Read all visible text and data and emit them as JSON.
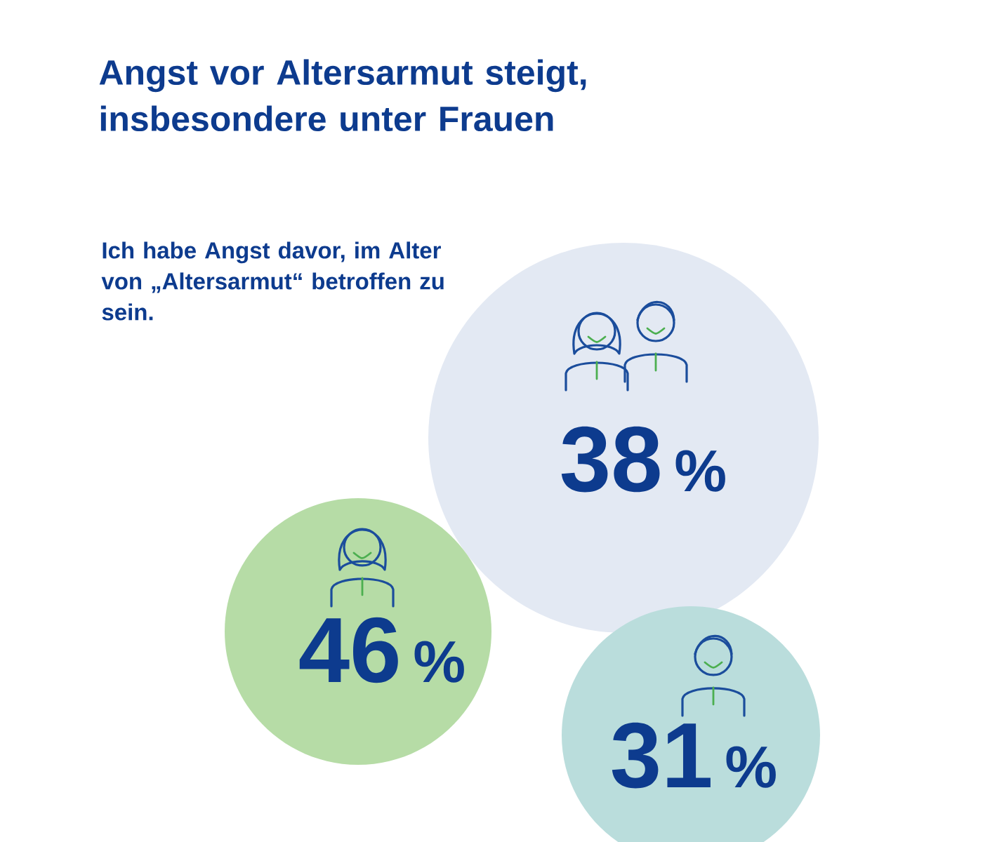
{
  "chart_data": {
    "type": "other",
    "title": "Angst vor Altersarmut steigt, insbesondere unter Frauen",
    "subtitle": "Ich habe Angst davor, im Alter von „Altersarmut“ betroffen zu sein.",
    "categories": [
      null,
      null,
      null
    ],
    "values": [
      38,
      46,
      31
    ],
    "data_labels": true,
    "annotations": [
      "%",
      "%",
      "%"
    ],
    "colors": [
      "#e3e9f3",
      "#b6dca6",
      "#badddc"
    ]
  }
}
